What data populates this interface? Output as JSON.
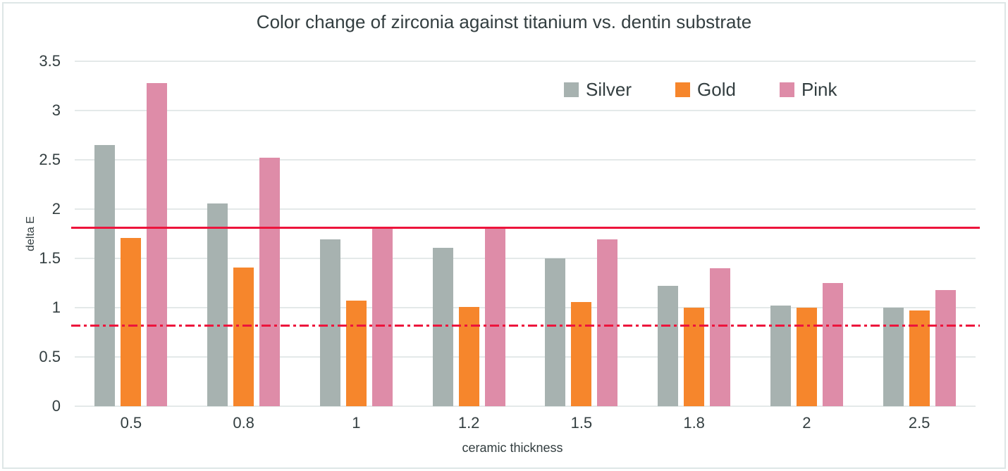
{
  "title": "Color change of zirconia against titanium vs. dentin substrate",
  "colors": {
    "silver": "#a7b2b0",
    "gold": "#f6862c",
    "pink": "#de8ca8",
    "reference_red": "#ed143c",
    "gridline": "#e4e9e9",
    "text": "#333e40",
    "border": "#dee6e6",
    "background": "#ffffff"
  },
  "chart_data": {
    "type": "bar",
    "title": "Color change of zirconia against titanium vs. dentin substrate",
    "xlabel": "ceramic thickness",
    "ylabel": "delta E",
    "categories": [
      "0.5",
      "0.8",
      "1",
      "1.2",
      "1.5",
      "1.8",
      "2",
      "2.5"
    ],
    "series": [
      {
        "name": "Silver",
        "color": "#a7b2b0",
        "values": [
          2.65,
          2.06,
          1.69,
          1.61,
          1.5,
          1.22,
          1.02,
          1.0
        ]
      },
      {
        "name": "Gold",
        "color": "#f6862c",
        "values": [
          1.71,
          1.41,
          1.07,
          1.01,
          1.06,
          1.0,
          1.0,
          0.97
        ]
      },
      {
        "name": "Pink",
        "color": "#de8ca8",
        "values": [
          3.28,
          2.52,
          1.82,
          1.82,
          1.69,
          1.4,
          1.25,
          1.18
        ]
      }
    ],
    "ylim": [
      0,
      3.5
    ],
    "yticks": [
      "0",
      "0.5",
      "1",
      "1.5",
      "2",
      "2.5",
      "3",
      "3.5"
    ],
    "grid": true,
    "legend_position": "top-right",
    "reference_lines": [
      {
        "value": 1.81,
        "style": "solid",
        "color": "#ed143c"
      },
      {
        "value": 0.82,
        "style": "dash-dot",
        "color": "#ed143c"
      }
    ]
  }
}
